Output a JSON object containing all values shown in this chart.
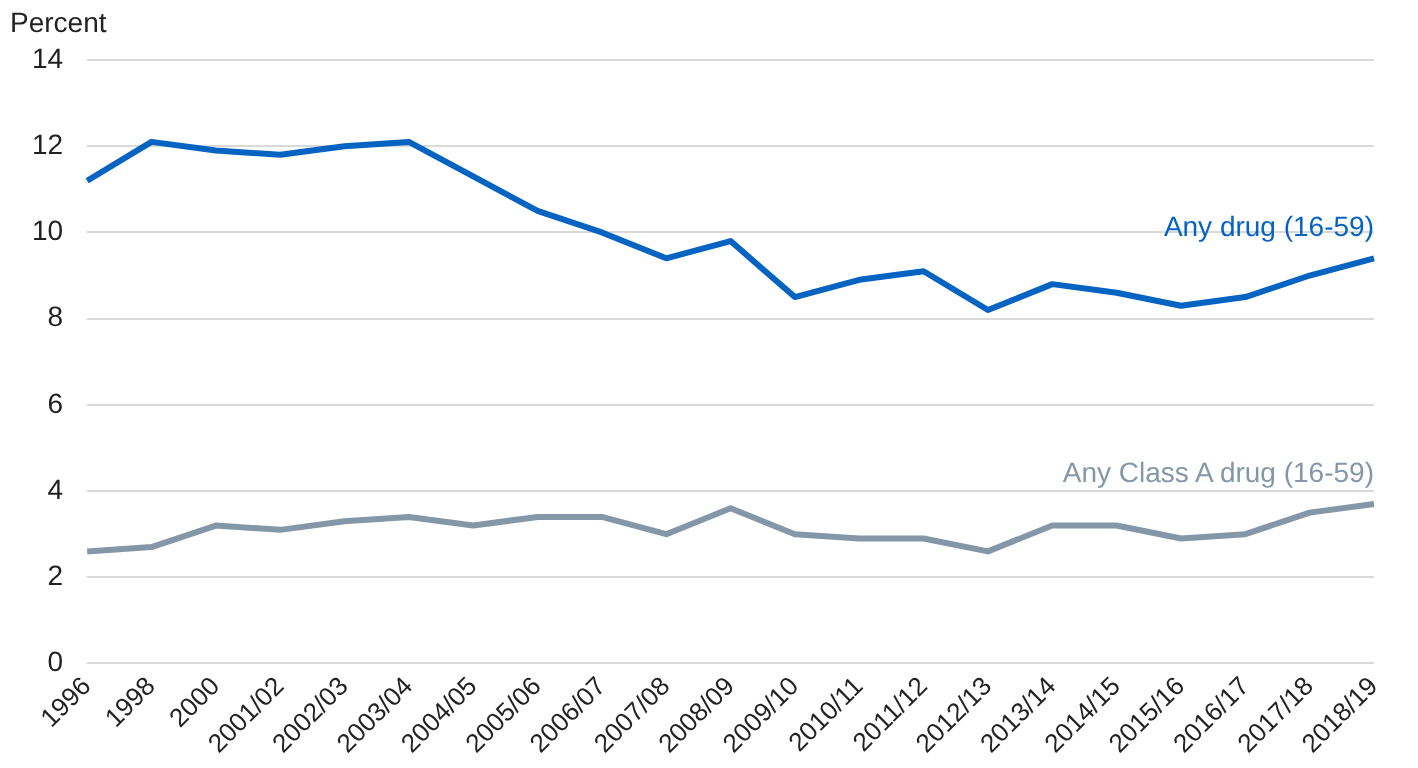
{
  "chart_data": {
    "type": "line",
    "ylabel": "Percent",
    "categories": [
      "1996",
      "1998",
      "2000",
      "2001/02",
      "2002/03",
      "2003/04",
      "2004/05",
      "2005/06",
      "2006/07",
      "2007/08",
      "2008/09",
      "2009/10",
      "2010/11",
      "2011/12",
      "2012/13",
      "2013/14",
      "2014/15",
      "2015/16",
      "2016/17",
      "2017/18",
      "2018/19"
    ],
    "series": [
      {
        "name": "Any drug (16-59)",
        "color": "#0563c1",
        "values": [
          11.2,
          12.1,
          11.9,
          11.8,
          12.0,
          12.1,
          11.3,
          10.5,
          10.0,
          9.4,
          9.8,
          8.5,
          8.9,
          9.1,
          8.2,
          8.8,
          8.6,
          8.3,
          8.5,
          9.0,
          9.4
        ]
      },
      {
        "name": "Any Class A drug (16-59)",
        "color": "#8497a8",
        "values": [
          2.6,
          2.7,
          3.2,
          3.1,
          3.3,
          3.4,
          3.2,
          3.4,
          3.4,
          3.0,
          3.6,
          3.0,
          2.9,
          2.9,
          2.6,
          3.2,
          3.2,
          2.9,
          3.0,
          3.5,
          3.7
        ]
      }
    ],
    "ylim": [
      0,
      14
    ],
    "yticks": [
      0,
      2,
      4,
      6,
      8,
      10,
      12,
      14
    ],
    "grid": "y",
    "legend": false,
    "marker": "none",
    "line_style": "solid"
  }
}
